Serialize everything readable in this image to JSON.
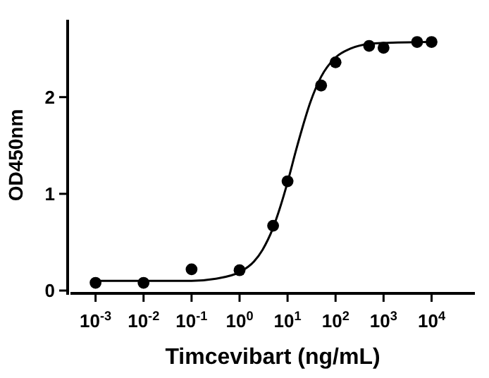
{
  "chart_data": {
    "type": "scatter",
    "xlabel": "Timcevibart (ng/mL)",
    "ylabel": "OD450nm",
    "log": "x",
    "marker": "circle",
    "grid": false,
    "xlim": [
      0.0003,
      80000
    ],
    "ylim": [
      0,
      2.8
    ],
    "xticks": [
      {
        "value": 0.001,
        "label": "10$^{-3}$"
      },
      {
        "value": 0.01,
        "label": "10$^{-2}$"
      },
      {
        "value": 0.1,
        "label": "10$^{-1}$"
      },
      {
        "value": 1,
        "label": "10$^{0}$"
      },
      {
        "value": 10,
        "label": "10$^{1}$"
      },
      {
        "value": 100,
        "label": "10$^{2}$"
      },
      {
        "value": 1000,
        "label": "10$^{3}$"
      },
      {
        "value": 10000,
        "label": "10$^{4}$"
      }
    ],
    "yticks": [
      0,
      1,
      2
    ],
    "series": [
      {
        "color": "#000000",
        "x": [
          0.001,
          0.01,
          0.1,
          1,
          5,
          10,
          50,
          100,
          500,
          1000,
          5000,
          10000
        ],
        "values": [
          0.08,
          0.08,
          0.22,
          0.21,
          0.67,
          1.13,
          2.12,
          2.36,
          2.53,
          2.51,
          2.57,
          2.57
        ]
      },
      {
        "type": "line",
        "color": "#000000",
        "marker": "none",
        "x": [
          0.001,
          0.01,
          0.1,
          0.3,
          1,
          2,
          3,
          5,
          7,
          10,
          15,
          20,
          30,
          50,
          100,
          200,
          500,
          1000,
          10000
        ],
        "values": [
          0.1,
          0.1,
          0.1,
          0.12,
          0.19,
          0.3,
          0.42,
          0.65,
          0.86,
          1.12,
          1.45,
          1.67,
          1.95,
          2.21,
          2.41,
          2.5,
          2.55,
          2.56,
          2.57
        ]
      }
    ]
  }
}
